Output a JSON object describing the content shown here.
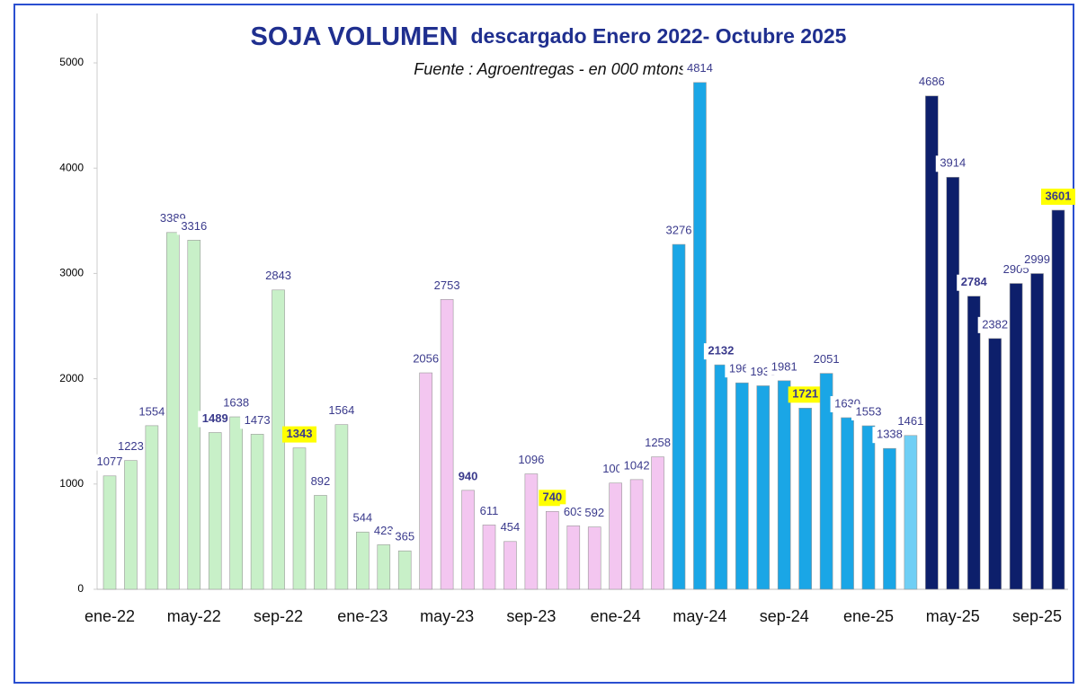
{
  "chart_data": {
    "type": "bar",
    "title": "SOJA VOLUMEN",
    "title_detail": "descargado Enero 2022- Octubre 2025",
    "subtitle": "Fuente : Agroentregas - en 000 mtons-",
    "categories": [
      "ene-22",
      null,
      null,
      null,
      "may-22",
      null,
      null,
      null,
      "sep-22",
      null,
      null,
      null,
      "ene-23",
      null,
      null,
      null,
      "may-23",
      null,
      null,
      null,
      "sep-23",
      null,
      null,
      null,
      "ene-24",
      null,
      null,
      null,
      "may-24",
      null,
      null,
      null,
      "sep-24",
      null,
      null,
      null,
      "ene-25",
      null,
      null,
      null,
      "may-25",
      null,
      null,
      null,
      "sep-25",
      null
    ],
    "values": [
      1077,
      1223,
      1554,
      3389,
      3316,
      1489,
      1638,
      1473,
      2843,
      1343,
      892,
      1564,
      544,
      423,
      365,
      2056,
      2753,
      940,
      611,
      454,
      1096,
      740,
      603,
      592,
      1009,
      1042,
      1258,
      3276,
      4814,
      2132,
      1961,
      1933,
      1981,
      1721,
      2051,
      1630,
      1553,
      1338,
      1461,
      4686,
      3914,
      2784,
      2382,
      2905,
      2999,
      3601
    ],
    "colors": [
      "#c8f0c8",
      "#c8f0c8",
      "#c8f0c8",
      "#c8f0c8",
      "#c8f0c8",
      "#c8f0c8",
      "#c8f0c8",
      "#c8f0c8",
      "#c8f0c8",
      "#c8f0c8",
      "#c8f0c8",
      "#c8f0c8",
      "#c8f0c8",
      "#c8f0c8",
      "#c8f0c8",
      "#f3c6f0",
      "#f3c6f0",
      "#f3c6f0",
      "#f3c6f0",
      "#f3c6f0",
      "#f3c6f0",
      "#f3c6f0",
      "#f3c6f0",
      "#f3c6f0",
      "#f3c6f0",
      "#f3c6f0",
      "#f3c6f0",
      "#1aa6e6",
      "#1aa6e6",
      "#1aa6e6",
      "#1aa6e6",
      "#1aa6e6",
      "#1aa6e6",
      "#1aa6e6",
      "#1aa6e6",
      "#1aa6e6",
      "#1aa6e6",
      "#1aa6e6",
      "#6fcff5",
      "#0d1f6b",
      "#0d1f6b",
      "#0d1f6b",
      "#0d1f6b",
      "#0d1f6b",
      "#0d1f6b",
      "#0d1f6b"
    ],
    "bold_labels": [
      5,
      9,
      17,
      21,
      29,
      33,
      41,
      45
    ],
    "highlighted_labels": [
      9,
      21,
      33,
      45
    ],
    "ylim": [
      0,
      5000
    ],
    "yticks": [
      0,
      1000,
      2000,
      3000,
      4000,
      5000
    ],
    "grid": false
  }
}
